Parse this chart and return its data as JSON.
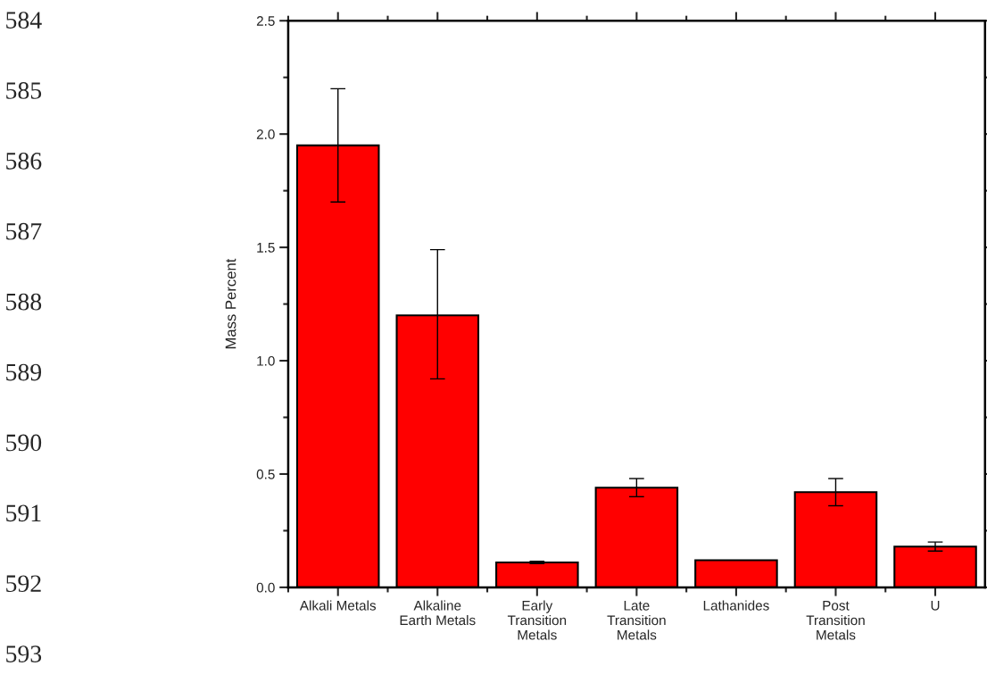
{
  "chart_data": {
    "type": "bar",
    "ylabel": "Mass Percent",
    "categories": [
      "Alkali Metals",
      "Alkaline\nEarth Metals",
      "Early\nTransition\nMetals",
      "Late\nTransition\nMetals",
      "Lathanides",
      "Post\nTransition\nMetals",
      "U"
    ],
    "values": [
      1.95,
      1.2,
      0.11,
      0.44,
      0.12,
      0.42,
      0.18
    ],
    "errors": [
      0.25,
      [
        0.92,
        1.49
      ],
      0.005,
      [
        0.4,
        0.48
      ],
      null,
      [
        0.36,
        0.48
      ],
      [
        0.16,
        0.2
      ]
    ],
    "color": "#ff0000",
    "ylim": [
      0,
      2.5
    ],
    "yticks": [
      {
        "value": 0,
        "label": "0.0"
      },
      0.5,
      {
        "value": 1,
        "label": "1.0"
      },
      1.5,
      {
        "value": 2,
        "label": "2.0"
      },
      2.5
    ],
    "grid": false,
    "legend": false,
    "annotations": [
      "584",
      "585",
      "586",
      "587",
      "588",
      "589",
      "590",
      "591",
      "592",
      "593"
    ]
  }
}
